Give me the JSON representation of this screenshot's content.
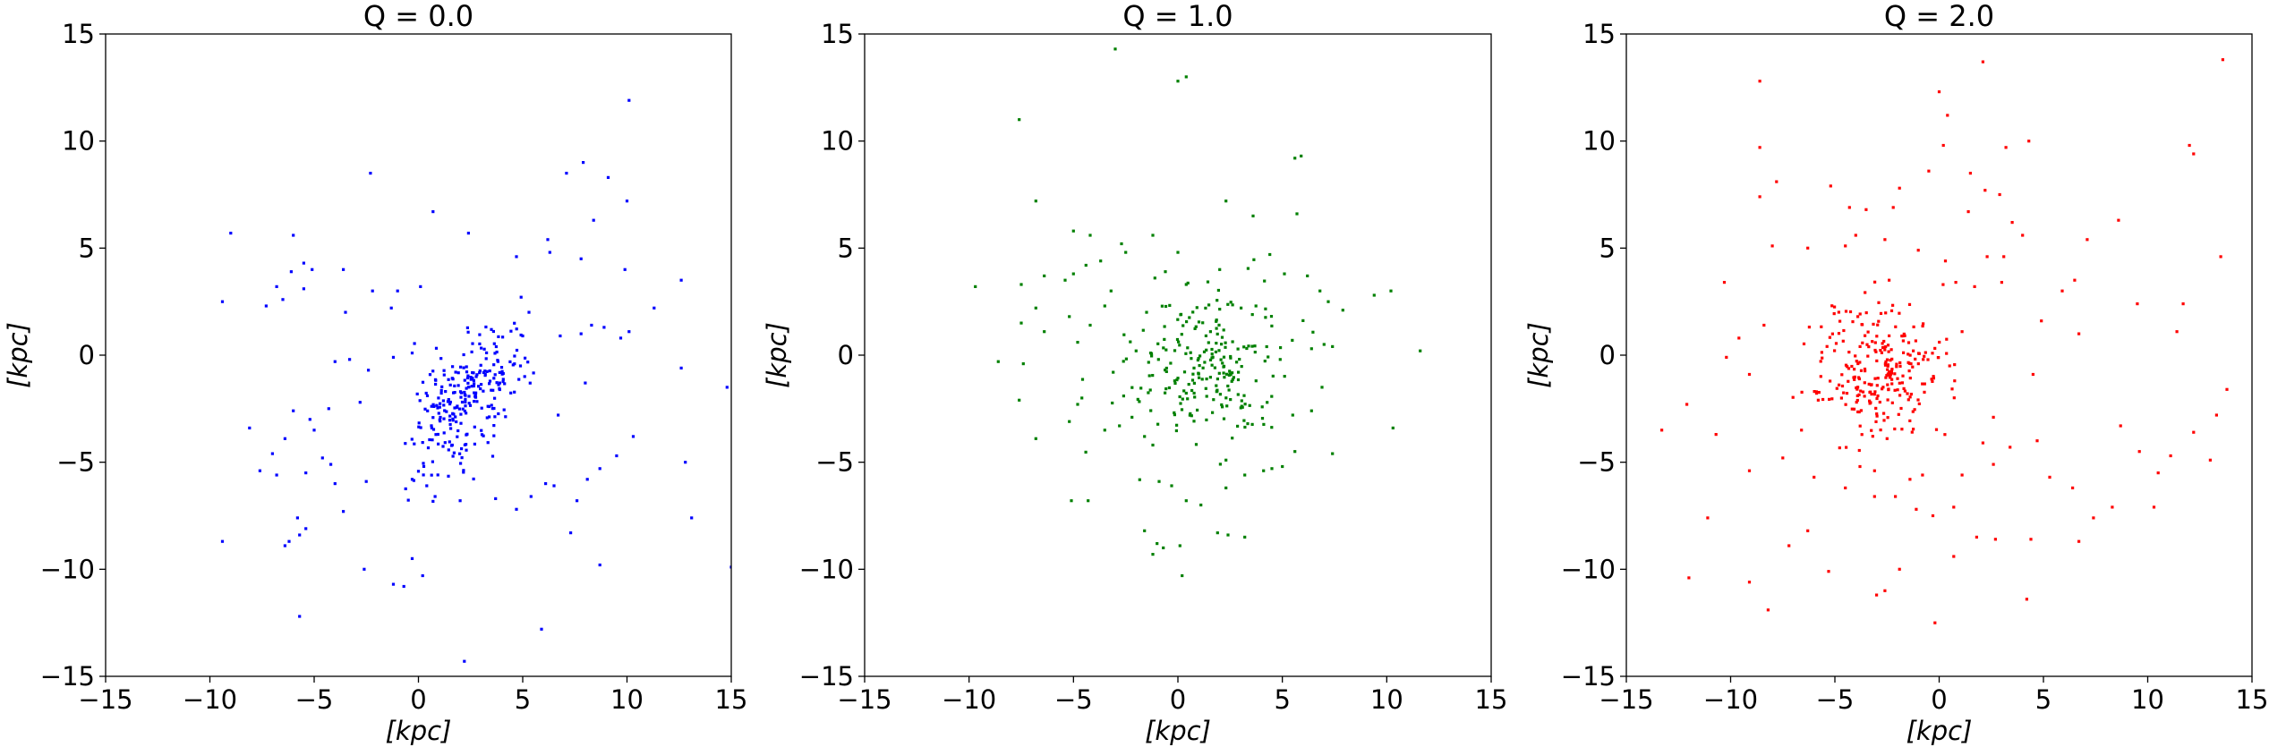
{
  "chart_data": [
    {
      "type": "scatter",
      "title": "Q = 0.0",
      "xlabel": "[kpc]",
      "ylabel": "[kpc]",
      "xlim": [
        -15,
        15
      ],
      "ylim": [
        -15,
        15
      ],
      "xticks": [
        -15,
        -10,
        -5,
        0,
        5,
        10,
        15
      ],
      "yticks": [
        -15,
        -10,
        -5,
        0,
        5,
        10,
        15
      ],
      "grid": false,
      "color": "#0000ff",
      "cluster": {
        "center": [
          2.3,
          -2.0
        ],
        "spread": [
          1.0,
          1.8
        ],
        "rotation_deg": 35,
        "count": 260
      },
      "points": [
        [
          10.1,
          11.9
        ],
        [
          -2.3,
          8.5
        ],
        [
          7.1,
          8.5
        ],
        [
          7.9,
          9.0
        ],
        [
          9.1,
          8.3
        ],
        [
          0.7,
          6.7
        ],
        [
          -9.0,
          5.7
        ],
        [
          -6.0,
          5.6
        ],
        [
          2.4,
          5.7
        ],
        [
          6.2,
          5.4
        ],
        [
          4.7,
          4.6
        ],
        [
          6.3,
          4.8
        ],
        [
          7.8,
          4.5
        ],
        [
          -6.1,
          3.9
        ],
        [
          -5.5,
          4.3
        ],
        [
          -5.1,
          4.0
        ],
        [
          -3.6,
          4.0
        ],
        [
          -6.8,
          3.2
        ],
        [
          -6.5,
          2.6
        ],
        [
          -5.5,
          3.1
        ],
        [
          12.6,
          3.5
        ],
        [
          -9.4,
          2.5
        ],
        [
          -7.3,
          2.3
        ],
        [
          -3.5,
          2.0
        ],
        [
          -2.2,
          3.0
        ],
        [
          -1.0,
          3.0
        ],
        [
          0.1,
          3.2
        ],
        [
          5.3,
          2.0
        ],
        [
          11.3,
          2.2
        ],
        [
          -1.3,
          2.2
        ],
        [
          8.3,
          1.4
        ],
        [
          8.9,
          1.3
        ],
        [
          10.1,
          1.1
        ],
        [
          3.5,
          1.2
        ],
        [
          5.0,
          0.9
        ],
        [
          6.8,
          0.9
        ],
        [
          7.8,
          1.0
        ],
        [
          9.7,
          0.8
        ],
        [
          -4.0,
          -0.3
        ],
        [
          -3.3,
          -0.2
        ],
        [
          -1.2,
          -0.1
        ],
        [
          -0.3,
          0.1
        ],
        [
          -2.4,
          -0.7
        ],
        [
          3.9,
          -1.3
        ],
        [
          8.0,
          -1.3
        ],
        [
          12.6,
          -0.6
        ],
        [
          14.8,
          -1.5
        ],
        [
          -8.1,
          -3.4
        ],
        [
          -6.0,
          -2.6
        ],
        [
          -4.3,
          -2.5
        ],
        [
          -2.8,
          -2.2
        ],
        [
          -5.2,
          -3.0
        ],
        [
          -5.0,
          -3.5
        ],
        [
          -6.4,
          -3.9
        ],
        [
          -4.6,
          -4.8
        ],
        [
          -7.6,
          -5.4
        ],
        [
          -5.4,
          -5.5
        ],
        [
          -4.2,
          -5.1
        ],
        [
          -6.8,
          -5.6
        ],
        [
          -4.0,
          -6.0
        ],
        [
          -2.5,
          -5.9
        ],
        [
          -0.3,
          -5.8
        ],
        [
          0.4,
          -6.1
        ],
        [
          0.8,
          -6.6
        ],
        [
          2.0,
          -6.8
        ],
        [
          3.7,
          -6.7
        ],
        [
          6.1,
          -6.0
        ],
        [
          7.6,
          -6.8
        ],
        [
          8.1,
          -5.8
        ],
        [
          8.7,
          -5.3
        ],
        [
          9.5,
          -4.7
        ],
        [
          10.3,
          -3.8
        ],
        [
          12.8,
          -5.0
        ],
        [
          -7.0,
          -4.6
        ],
        [
          6.5,
          -6.1
        ],
        [
          -5.8,
          -7.6
        ],
        [
          -5.4,
          -8.1
        ],
        [
          -6.2,
          -8.7
        ],
        [
          -5.7,
          -8.4
        ],
        [
          -3.6,
          -7.3
        ],
        [
          -2.6,
          -10.0
        ],
        [
          -0.3,
          -9.5
        ],
        [
          0.2,
          -10.3
        ],
        [
          -0.7,
          -10.8
        ],
        [
          -1.2,
          -10.7
        ],
        [
          -5.7,
          -12.2
        ],
        [
          5.9,
          -12.8
        ],
        [
          2.2,
          -14.3
        ],
        [
          8.7,
          -9.8
        ],
        [
          15.0,
          -9.9
        ],
        [
          13.1,
          -7.6
        ],
        [
          -9.4,
          -8.7
        ],
        [
          -6.4,
          -8.9
        ],
        [
          4.7,
          -7.2
        ],
        [
          7.3,
          -8.3
        ],
        [
          6.7,
          -2.8
        ],
        [
          5.4,
          -6.6
        ],
        [
          9.9,
          4.0
        ],
        [
          10.0,
          7.2
        ],
        [
          8.4,
          6.3
        ]
      ]
    },
    {
      "type": "scatter",
      "title": "Q = 1.0",
      "xlabel": "[kpc]",
      "ylabel": "[kpc]",
      "xlim": [
        -15,
        15
      ],
      "ylim": [
        -15,
        15
      ],
      "xticks": [
        -15,
        -10,
        -5,
        0,
        5,
        10,
        15
      ],
      "yticks": [
        -15,
        -10,
        -5,
        0,
        5,
        10,
        15
      ],
      "grid": false,
      "color": "#008000",
      "cluster": {
        "center": [
          1.4,
          -0.4
        ],
        "spread": [
          1.8,
          1.8
        ],
        "rotation_deg": 0,
        "count": 230
      },
      "points": [
        [
          -3.0,
          14.3
        ],
        [
          0.0,
          12.8
        ],
        [
          0.4,
          13.0
        ],
        [
          -7.6,
          11.0
        ],
        [
          5.6,
          9.2
        ],
        [
          5.9,
          9.3
        ],
        [
          -6.8,
          7.2
        ],
        [
          2.3,
          7.2
        ],
        [
          3.6,
          6.5
        ],
        [
          5.7,
          6.6
        ],
        [
          -5.0,
          5.8
        ],
        [
          -2.7,
          5.2
        ],
        [
          -1.2,
          5.6
        ],
        [
          -4.2,
          5.6
        ],
        [
          -4.4,
          4.2
        ],
        [
          -3.7,
          4.4
        ],
        [
          -2.5,
          4.8
        ],
        [
          -1.1,
          3.6
        ],
        [
          0.0,
          4.8
        ],
        [
          -5.0,
          3.8
        ],
        [
          -5.4,
          3.5
        ],
        [
          -3.2,
          3.0
        ],
        [
          4.4,
          4.7
        ],
        [
          5.1,
          3.8
        ],
        [
          6.2,
          3.7
        ],
        [
          -9.7,
          3.2
        ],
        [
          -7.5,
          3.3
        ],
        [
          -6.4,
          3.7
        ],
        [
          -3.5,
          2.3
        ],
        [
          -1.5,
          2.0
        ],
        [
          0.4,
          3.3
        ],
        [
          2.0,
          4.0
        ],
        [
          6.8,
          3.0
        ],
        [
          7.2,
          2.5
        ],
        [
          7.9,
          2.1
        ],
        [
          9.4,
          2.8
        ],
        [
          10.2,
          3.0
        ],
        [
          -6.8,
          2.2
        ],
        [
          -5.2,
          1.8
        ],
        [
          -7.5,
          1.5
        ],
        [
          -6.4,
          1.1
        ],
        [
          -4.2,
          1.4
        ],
        [
          -4.8,
          0.6
        ],
        [
          -2.0,
          0.2
        ],
        [
          6.4,
          0.3
        ],
        [
          7.0,
          0.5
        ],
        [
          7.4,
          0.4
        ],
        [
          11.6,
          0.2
        ],
        [
          -8.6,
          -0.3
        ],
        [
          -7.4,
          -0.4
        ],
        [
          -7.6,
          -2.1
        ],
        [
          -4.6,
          -2.0
        ],
        [
          -4.8,
          -2.3
        ],
        [
          -6.8,
          -3.9
        ],
        [
          -5.2,
          -3.1
        ],
        [
          -3.5,
          -3.5
        ],
        [
          -2.8,
          -3.3
        ],
        [
          -2.2,
          -2.9
        ],
        [
          -1.6,
          -3.8
        ],
        [
          -1.2,
          -4.2
        ],
        [
          5.5,
          -2.8
        ],
        [
          6.4,
          -2.6
        ],
        [
          10.3,
          -3.4
        ],
        [
          5.6,
          -4.5
        ],
        [
          7.4,
          -4.6
        ],
        [
          -5.1,
          -6.8
        ],
        [
          -4.3,
          -6.8
        ],
        [
          -0.9,
          -5.9
        ],
        [
          -0.3,
          -6.1
        ],
        [
          0.4,
          -6.8
        ],
        [
          1.1,
          -7.0
        ],
        [
          2.3,
          -6.2
        ],
        [
          3.2,
          -5.6
        ],
        [
          4.1,
          -5.4
        ],
        [
          4.5,
          -5.3
        ],
        [
          5.0,
          -5.2
        ],
        [
          -1.6,
          -8.2
        ],
        [
          -0.7,
          -9.0
        ],
        [
          -1.2,
          -9.3
        ],
        [
          0.1,
          -8.9
        ],
        [
          1.9,
          -8.3
        ],
        [
          2.4,
          -8.4
        ],
        [
          3.2,
          -8.5
        ],
        [
          0.2,
          -10.3
        ],
        [
          -1.0,
          -8.8
        ],
        [
          2.3,
          -4.9
        ],
        [
          6.9,
          -1.5
        ],
        [
          -3.1,
          -0.8
        ],
        [
          4.9,
          -0.2
        ],
        [
          -0.6,
          3.9
        ]
      ]
    },
    {
      "type": "scatter",
      "title": "Q = 2.0",
      "xlabel": "[kpc]",
      "ylabel": "[kpc]",
      "xlim": [
        -15,
        15
      ],
      "ylim": [
        -15,
        15
      ],
      "xticks": [
        -15,
        -10,
        -5,
        0,
        5,
        10,
        15
      ],
      "yticks": [
        -15,
        -10,
        -5,
        0,
        5,
        10,
        15
      ],
      "grid": false,
      "color": "#ff0000",
      "cluster": {
        "center": [
          -2.8,
          -0.8
        ],
        "spread": [
          1.6,
          1.6
        ],
        "rotation_deg": 0,
        "count": 260
      },
      "points": [
        [
          -8.6,
          12.8
        ],
        [
          0.0,
          12.3
        ],
        [
          2.1,
          13.7
        ],
        [
          13.6,
          13.8
        ],
        [
          0.4,
          11.2
        ],
        [
          -8.6,
          9.7
        ],
        [
          0.2,
          9.8
        ],
        [
          3.2,
          9.7
        ],
        [
          4.3,
          10.0
        ],
        [
          12.0,
          9.8
        ],
        [
          12.2,
          9.4
        ],
        [
          -0.5,
          8.6
        ],
        [
          1.5,
          8.5
        ],
        [
          -7.8,
          8.1
        ],
        [
          -5.2,
          7.9
        ],
        [
          -1.9,
          7.8
        ],
        [
          2.2,
          7.7
        ],
        [
          2.9,
          7.5
        ],
        [
          -8.6,
          7.4
        ],
        [
          -4.3,
          6.9
        ],
        [
          -3.5,
          6.8
        ],
        [
          -2.2,
          6.9
        ],
        [
          1.4,
          6.7
        ],
        [
          3.5,
          6.2
        ],
        [
          8.6,
          6.3
        ],
        [
          7.1,
          5.4
        ],
        [
          4.0,
          5.6
        ],
        [
          -4.0,
          5.6
        ],
        [
          -6.3,
          5.0
        ],
        [
          -8.0,
          5.1
        ],
        [
          13.5,
          4.6
        ],
        [
          -4.5,
          5.1
        ],
        [
          -2.6,
          5.4
        ],
        [
          -1.0,
          4.9
        ],
        [
          0.3,
          4.4
        ],
        [
          2.3,
          4.6
        ],
        [
          3.1,
          4.6
        ],
        [
          6.5,
          3.5
        ],
        [
          3.0,
          3.4
        ],
        [
          1.7,
          3.2
        ],
        [
          0.8,
          3.4
        ],
        [
          -10.3,
          3.4
        ],
        [
          -8.4,
          1.4
        ],
        [
          -9.6,
          0.8
        ],
        [
          -10.2,
          -0.1
        ],
        [
          -9.1,
          -0.9
        ],
        [
          -12.1,
          -2.3
        ],
        [
          -13.3,
          -3.5
        ],
        [
          -10.7,
          -3.7
        ],
        [
          -9.1,
          -5.4
        ],
        [
          -7.5,
          -4.8
        ],
        [
          -11.1,
          -7.6
        ],
        [
          -9.1,
          -10.6
        ],
        [
          -12.0,
          -10.4
        ],
        [
          -8.2,
          -11.9
        ],
        [
          -7.2,
          -8.9
        ],
        [
          -6.3,
          -8.2
        ],
        [
          -6.0,
          -5.7
        ],
        [
          -4.5,
          -6.2
        ],
        [
          -3.8,
          -5.2
        ],
        [
          -3.1,
          -5.4
        ],
        [
          -3.1,
          -6.6
        ],
        [
          -2.1,
          -6.6
        ],
        [
          -1.4,
          -5.8
        ],
        [
          -0.8,
          -5.6
        ],
        [
          -1.1,
          -7.2
        ],
        [
          -0.3,
          -7.5
        ],
        [
          0.7,
          -7.1
        ],
        [
          1.1,
          -5.6
        ],
        [
          2.1,
          -4.1
        ],
        [
          2.6,
          -5.1
        ],
        [
          3.4,
          -4.3
        ],
        [
          4.7,
          -4.0
        ],
        [
          5.3,
          -5.7
        ],
        [
          6.4,
          -6.2
        ],
        [
          7.4,
          -7.6
        ],
        [
          8.3,
          -7.1
        ],
        [
          9.6,
          -4.5
        ],
        [
          10.3,
          -7.1
        ],
        [
          11.1,
          -4.7
        ],
        [
          12.2,
          -3.6
        ],
        [
          13.0,
          -4.9
        ],
        [
          13.3,
          -2.8
        ],
        [
          6.7,
          -8.7
        ],
        [
          4.4,
          -8.6
        ],
        [
          2.7,
          -8.6
        ],
        [
          1.8,
          -8.5
        ],
        [
          0.7,
          -9.4
        ],
        [
          -1.9,
          -10.0
        ],
        [
          -3.0,
          -11.2
        ],
        [
          -2.6,
          -11.0
        ],
        [
          -0.2,
          -12.5
        ],
        [
          4.2,
          -11.4
        ],
        [
          -5.3,
          -10.1
        ],
        [
          10.5,
          -5.5
        ],
        [
          8.7,
          -3.3
        ],
        [
          11.4,
          1.1
        ],
        [
          11.7,
          2.4
        ],
        [
          9.5,
          2.4
        ],
        [
          6.7,
          1.0
        ],
        [
          4.9,
          1.6
        ],
        [
          4.5,
          -0.9
        ],
        [
          -3.9,
          1.8
        ],
        [
          -5.8,
          -2.1
        ],
        [
          2.6,
          -2.9
        ],
        [
          -2.4,
          3.5
        ],
        [
          13.8,
          -1.6
        ],
        [
          -6.6,
          -3.5
        ],
        [
          0.5,
          -0.5
        ],
        [
          5.9,
          3.0
        ],
        [
          -2.5,
          -3.9
        ],
        [
          1.1,
          1.1
        ]
      ]
    }
  ]
}
